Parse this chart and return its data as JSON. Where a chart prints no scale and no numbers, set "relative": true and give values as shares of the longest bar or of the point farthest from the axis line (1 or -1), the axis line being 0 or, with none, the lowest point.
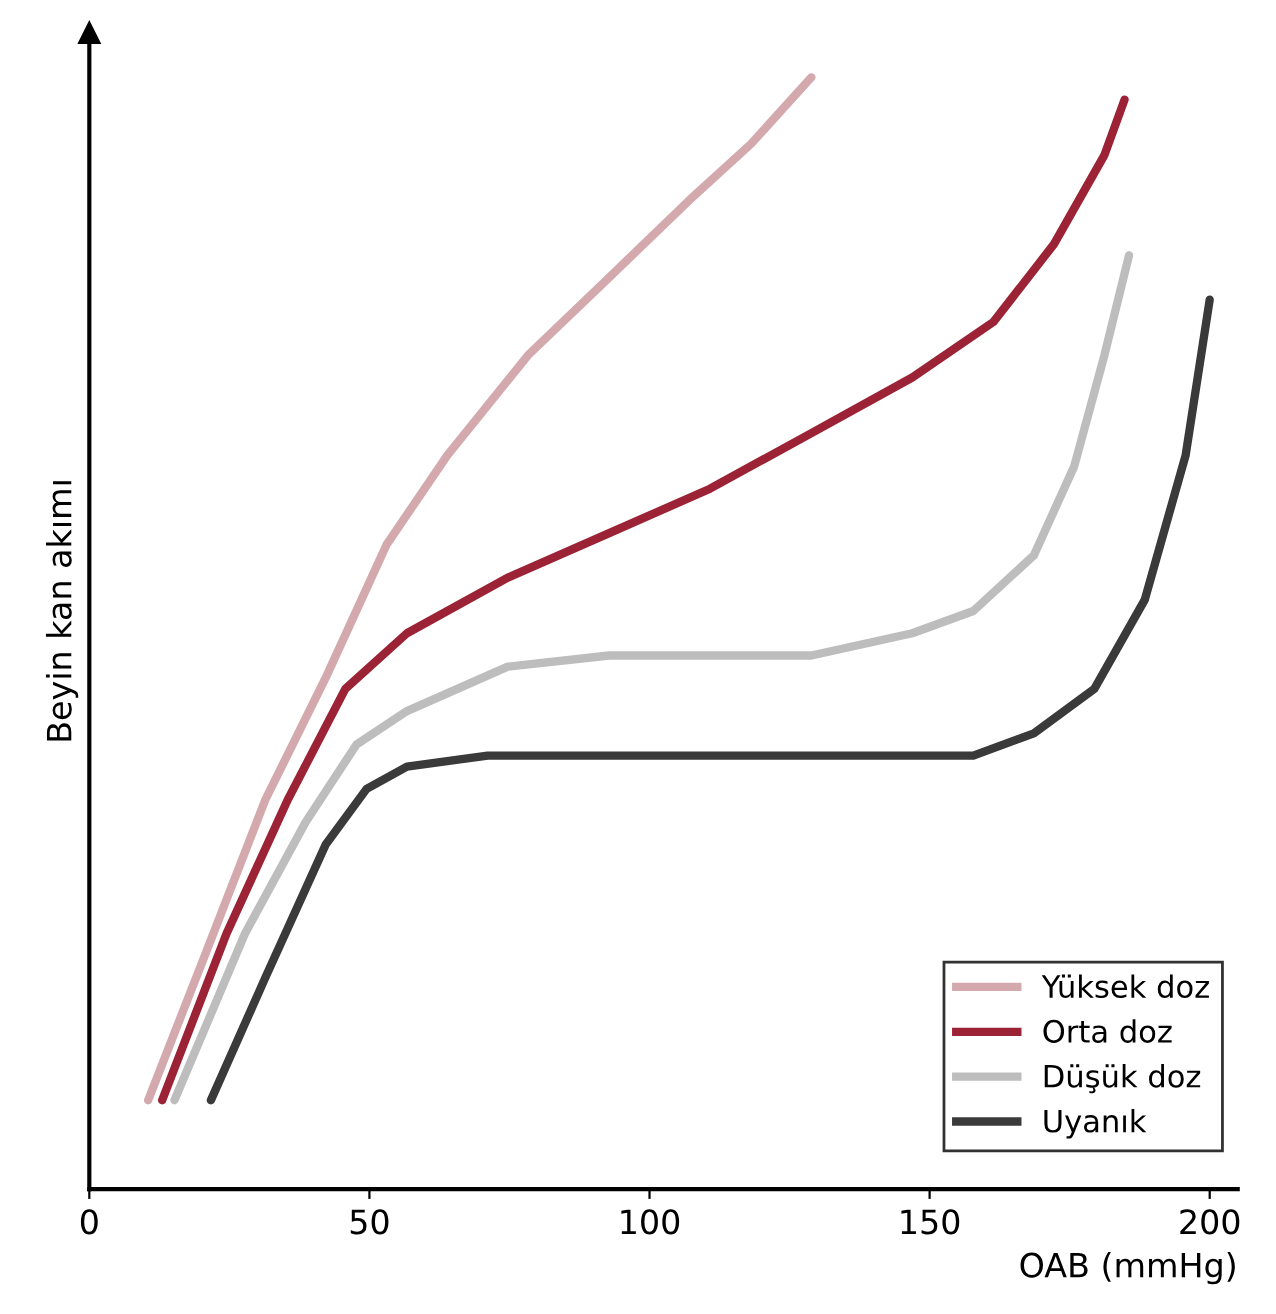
{
  "chart_data": {
    "type": "line",
    "relative": true,
    "xlabel": "OAB (mmHg)",
    "ylabel": "Beyin kan akımı",
    "xlim": [
      0,
      205
    ],
    "xticks": [
      0,
      50,
      100,
      150,
      200
    ],
    "legend": "bottom right",
    "grid": false,
    "marker": "none",
    "line_style": "solid",
    "series": [
      {
        "name": "Yüksek doz",
        "color": "#d4a9ae",
        "x": [
          10.5,
          20.6,
          31.4,
          42.2,
          53.1,
          63.9,
          78.3,
          92.8,
          107.2,
          118.1,
          128.9
        ],
        "values": [
          0.08,
          0.21,
          0.35,
          0.46,
          0.58,
          0.66,
          0.75,
          0.82,
          0.89,
          0.94,
          1.0
        ]
      },
      {
        "name": "Orta doz",
        "color": "#9b2335",
        "x": [
          13.0,
          24.5,
          35.4,
          45.7,
          56.7,
          74.7,
          92.8,
          110.8,
          128.9,
          146.9,
          161.4,
          172.2,
          181.2,
          184.8
        ],
        "values": [
          0.08,
          0.23,
          0.35,
          0.45,
          0.5,
          0.55,
          0.59,
          0.63,
          0.68,
          0.73,
          0.78,
          0.85,
          0.93,
          0.98
        ]
      },
      {
        "name": "Düşük doz",
        "color": "#bdbdbd",
        "x": [
          15.2,
          27.8,
          38.6,
          47.7,
          56.7,
          74.7,
          92.8,
          110.8,
          128.9,
          146.9,
          157.8,
          168.6,
          175.8,
          181.2,
          185.6
        ],
        "values": [
          0.08,
          0.23,
          0.33,
          0.4,
          0.43,
          0.47,
          0.48,
          0.48,
          0.48,
          0.5,
          0.52,
          0.57,
          0.65,
          0.75,
          0.84
        ]
      },
      {
        "name": "Uyanık",
        "color": "#3a3a3a",
        "x": [
          21.7,
          31.4,
          42.2,
          49.5,
          56.7,
          71.1,
          92.8,
          110.8,
          128.9,
          146.9,
          157.8,
          168.6,
          179.4,
          188.4,
          195.7,
          200.0
        ],
        "values": [
          0.08,
          0.19,
          0.31,
          0.36,
          0.38,
          0.39,
          0.39,
          0.39,
          0.39,
          0.39,
          0.39,
          0.41,
          0.45,
          0.53,
          0.66,
          0.8
        ]
      }
    ]
  }
}
